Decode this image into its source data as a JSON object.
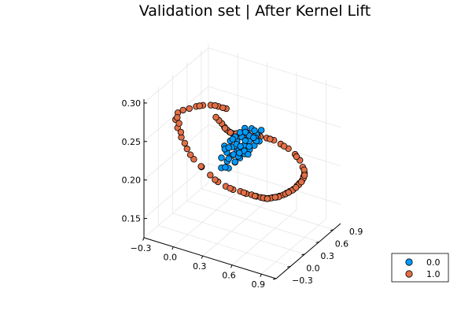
{
  "chart_data": {
    "type": "scatter",
    "projection": "3d",
    "title": "Validation set | After Kernel Lift",
    "grid": true,
    "legend_position": "bottom-right",
    "axes": {
      "x": {
        "label": "",
        "range": [
          -0.3,
          1.05
        ],
        "ticks": [
          -0.3,
          0.0,
          0.3,
          0.6,
          0.9
        ],
        "tick_labels": [
          "−0.3",
          "0.0",
          "0.3",
          "0.6",
          "0.9"
        ]
      },
      "y": {
        "label": "",
        "range": [
          -0.3,
          1.05
        ],
        "ticks": [
          -0.3,
          0.0,
          0.3,
          0.6,
          0.9
        ],
        "tick_labels": [
          "−0.3",
          "0.0",
          "0.3",
          "0.6",
          "0.9"
        ]
      },
      "z": {
        "label": "",
        "range": [
          0.125,
          0.305
        ],
        "ticks": [
          0.15,
          0.2,
          0.25,
          0.3
        ],
        "tick_labels": [
          "0.15",
          "0.20",
          "0.25",
          "0.30"
        ]
      }
    },
    "series": [
      {
        "name": "0.0",
        "color": "#009af9",
        "points": [
          [
            0.14,
            0.42,
            0.208
          ],
          [
            0.18,
            0.45,
            0.215
          ],
          [
            0.22,
            0.48,
            0.222
          ],
          [
            0.26,
            0.5,
            0.23
          ],
          [
            0.3,
            0.52,
            0.236
          ],
          [
            0.34,
            0.54,
            0.242
          ],
          [
            0.38,
            0.56,
            0.248
          ],
          [
            0.16,
            0.5,
            0.2
          ],
          [
            0.2,
            0.52,
            0.208
          ],
          [
            0.24,
            0.54,
            0.214
          ],
          [
            0.28,
            0.56,
            0.22
          ],
          [
            0.32,
            0.58,
            0.226
          ],
          [
            0.36,
            0.6,
            0.232
          ],
          [
            0.4,
            0.62,
            0.238
          ],
          [
            0.44,
            0.64,
            0.244
          ],
          [
            0.12,
            0.46,
            0.192
          ],
          [
            0.18,
            0.4,
            0.226
          ],
          [
            0.22,
            0.44,
            0.232
          ],
          [
            0.26,
            0.46,
            0.238
          ],
          [
            0.3,
            0.48,
            0.244
          ],
          [
            0.34,
            0.5,
            0.25
          ],
          [
            0.2,
            0.58,
            0.196
          ],
          [
            0.24,
            0.6,
            0.202
          ],
          [
            0.28,
            0.62,
            0.208
          ],
          [
            0.32,
            0.64,
            0.214
          ],
          [
            0.36,
            0.66,
            0.22
          ],
          [
            0.4,
            0.68,
            0.226
          ],
          [
            0.15,
            0.55,
            0.188
          ],
          [
            0.27,
            0.52,
            0.218
          ],
          [
            0.31,
            0.55,
            0.224
          ],
          [
            0.35,
            0.57,
            0.23
          ],
          [
            0.23,
            0.49,
            0.212
          ],
          [
            0.19,
            0.47,
            0.206
          ],
          [
            0.29,
            0.59,
            0.214
          ],
          [
            0.33,
            0.61,
            0.22
          ],
          [
            0.37,
            0.53,
            0.24
          ],
          [
            0.41,
            0.58,
            0.236
          ],
          [
            0.17,
            0.43,
            0.22
          ],
          [
            0.21,
            0.56,
            0.198
          ],
          [
            0.25,
            0.43,
            0.236
          ],
          [
            0.42,
            0.54,
            0.248
          ],
          [
            0.13,
            0.52,
            0.19
          ],
          [
            0.39,
            0.64,
            0.228
          ],
          [
            0.27,
            0.47,
            0.228
          ],
          [
            0.31,
            0.63,
            0.208
          ],
          [
            0.35,
            0.49,
            0.246
          ],
          [
            0.24,
            0.57,
            0.206
          ],
          [
            0.29,
            0.51,
            0.224
          ],
          [
            0.33,
            0.53,
            0.232
          ],
          [
            0.2,
            0.45,
            0.222
          ],
          [
            0.38,
            0.6,
            0.234
          ],
          [
            0.26,
            0.55,
            0.212
          ]
        ]
      },
      {
        "name": "1.0",
        "color": "#e26f46",
        "points": [
          [
            -0.15,
            0.1,
            0.272
          ],
          [
            -0.12,
            0.15,
            0.274
          ],
          [
            -0.08,
            0.2,
            0.275
          ],
          [
            -0.04,
            0.26,
            0.276
          ],
          [
            0.0,
            0.32,
            0.276
          ],
          [
            0.05,
            0.38,
            0.275
          ],
          [
            0.1,
            0.44,
            0.272
          ],
          [
            0.15,
            0.5,
            0.268
          ],
          [
            -0.22,
            0.2,
            0.255
          ],
          [
            -0.25,
            0.3,
            0.238
          ],
          [
            -0.26,
            0.4,
            0.22
          ],
          [
            -0.25,
            0.5,
            0.2
          ],
          [
            -0.23,
            0.6,
            0.182
          ],
          [
            -0.2,
            0.7,
            0.168
          ],
          [
            -0.15,
            0.78,
            0.155
          ],
          [
            -0.1,
            0.84,
            0.145
          ],
          [
            -0.05,
            0.9,
            0.138
          ],
          [
            0.0,
            0.95,
            0.133
          ],
          [
            0.05,
            1.0,
            0.13
          ],
          [
            0.1,
            1.02,
            0.128
          ],
          [
            0.15,
            1.03,
            0.128
          ],
          [
            0.2,
            1.03,
            0.128
          ],
          [
            0.25,
            1.02,
            0.129
          ],
          [
            0.3,
            1.0,
            0.131
          ],
          [
            0.35,
            0.98,
            0.134
          ],
          [
            0.4,
            0.96,
            0.138
          ],
          [
            0.45,
            0.93,
            0.142
          ],
          [
            0.5,
            0.9,
            0.147
          ],
          [
            0.55,
            0.87,
            0.152
          ],
          [
            0.6,
            0.84,
            0.158
          ],
          [
            0.65,
            0.81,
            0.164
          ],
          [
            0.7,
            0.78,
            0.17
          ],
          [
            0.75,
            0.75,
            0.178
          ],
          [
            0.8,
            0.7,
            0.186
          ],
          [
            0.85,
            0.65,
            0.194
          ],
          [
            0.9,
            0.58,
            0.205
          ],
          [
            0.95,
            0.5,
            0.216
          ],
          [
            0.98,
            0.4,
            0.23
          ],
          [
            1.0,
            0.3,
            0.245
          ],
          [
            1.0,
            0.2,
            0.258
          ],
          [
            0.98,
            0.1,
            0.27
          ],
          [
            0.95,
            0.0,
            0.28
          ],
          [
            0.92,
            -0.08,
            0.288
          ],
          [
            0.88,
            -0.15,
            0.293
          ],
          [
            0.84,
            -0.2,
            0.296
          ],
          [
            0.8,
            -0.24,
            0.298
          ],
          [
            0.75,
            -0.26,
            0.298
          ],
          [
            0.7,
            -0.27,
            0.297
          ],
          [
            0.65,
            -0.26,
            0.295
          ],
          [
            0.6,
            -0.24,
            0.292
          ],
          [
            0.55,
            -0.2,
            0.289
          ],
          [
            0.5,
            -0.15,
            0.286
          ],
          [
            0.45,
            -0.1,
            0.284
          ],
          [
            0.4,
            -0.05,
            0.283
          ],
          [
            0.35,
            0.0,
            0.283
          ],
          [
            0.3,
            0.04,
            0.283
          ],
          [
            -0.18,
            0.65,
            0.172
          ],
          [
            -0.12,
            0.82,
            0.148
          ],
          [
            -0.02,
            0.93,
            0.135
          ],
          [
            0.08,
            1.01,
            0.129
          ],
          [
            0.18,
            1.04,
            0.127
          ],
          [
            0.28,
            1.01,
            0.13
          ],
          [
            0.38,
            0.97,
            0.136
          ],
          [
            0.48,
            0.92,
            0.144
          ],
          [
            0.58,
            0.86,
            0.155
          ],
          [
            0.68,
            0.8,
            0.167
          ],
          [
            0.78,
            0.73,
            0.182
          ],
          [
            0.88,
            0.62,
            0.2
          ],
          [
            0.96,
            0.47,
            0.222
          ],
          [
            0.99,
            0.25,
            0.252
          ],
          [
            0.96,
            0.05,
            0.275
          ],
          [
            0.9,
            -0.12,
            0.291
          ],
          [
            0.82,
            -0.22,
            0.297
          ],
          [
            0.72,
            -0.27,
            0.298
          ],
          [
            0.62,
            -0.25,
            0.294
          ],
          [
            0.52,
            -0.17,
            0.287
          ],
          [
            0.42,
            -0.08,
            0.284
          ],
          [
            0.25,
            0.08,
            0.283
          ],
          [
            -0.24,
            0.35,
            0.23
          ],
          [
            -0.25,
            0.45,
            0.21
          ],
          [
            -0.21,
            0.25,
            0.248
          ],
          [
            -0.18,
            0.15,
            0.262
          ],
          [
            -0.02,
            0.29,
            0.276
          ],
          [
            0.08,
            0.41,
            0.274
          ],
          [
            0.13,
            0.47,
            0.27
          ],
          [
            -0.24,
            0.55,
            0.19
          ],
          [
            0.33,
            0.99,
            0.132
          ],
          [
            0.43,
            0.95,
            0.14
          ],
          [
            0.63,
            0.82,
            0.161
          ],
          [
            0.73,
            0.77,
            0.174
          ],
          [
            0.83,
            0.68,
            0.19
          ],
          [
            0.93,
            0.54,
            0.21
          ]
        ]
      }
    ]
  }
}
